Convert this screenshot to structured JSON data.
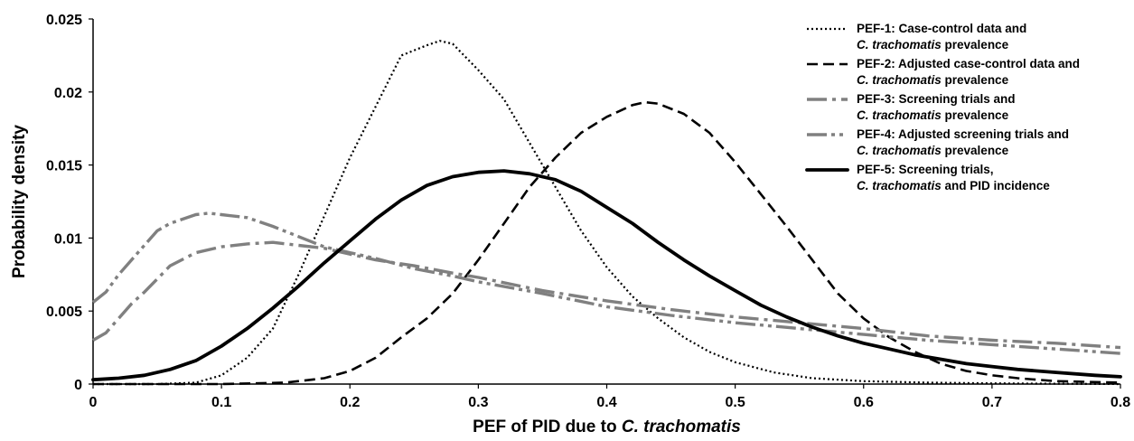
{
  "chart_data": {
    "type": "line",
    "xlabel": "PEF of PID due to C. trachomatis",
    "xlabel_parts": [
      "PEF of PID due to ",
      "C. trachomatis"
    ],
    "ylabel": "Probability density",
    "xlim": [
      0,
      0.8
    ],
    "ylim": [
      0,
      0.025
    ],
    "x_ticks": [
      "0",
      "0.1",
      "0.2",
      "0.3",
      "0.4",
      "0.5",
      "0.6",
      "0.7",
      "0.8"
    ],
    "y_ticks": [
      "0",
      "0.005",
      "0.01",
      "0.015",
      "0.02",
      "0.025"
    ],
    "grid": false,
    "legend_position": "top-right",
    "series": [
      {
        "name": "PEF-1: Case-control data and C. trachomatis prevalence",
        "legend_lines": [
          [
            [
              "PEF-1: Case-control data and",
              false
            ]
          ],
          [
            [
              "C. trachomatis",
              true
            ],
            [
              " prevalence",
              false
            ]
          ]
        ],
        "style": "dotted",
        "color": "#000000",
        "points": [
          [
            0,
            0
          ],
          [
            0.05,
            0
          ],
          [
            0.08,
            0.0001
          ],
          [
            0.1,
            0.0006
          ],
          [
            0.12,
            0.0018
          ],
          [
            0.14,
            0.0038
          ],
          [
            0.16,
            0.0075
          ],
          [
            0.18,
            0.0115
          ],
          [
            0.2,
            0.0155
          ],
          [
            0.22,
            0.019
          ],
          [
            0.24,
            0.0225
          ],
          [
            0.26,
            0.0232
          ],
          [
            0.27,
            0.0235
          ],
          [
            0.28,
            0.0233
          ],
          [
            0.3,
            0.0215
          ],
          [
            0.32,
            0.0195
          ],
          [
            0.34,
            0.0165
          ],
          [
            0.36,
            0.0135
          ],
          [
            0.38,
            0.0105
          ],
          [
            0.4,
            0.008
          ],
          [
            0.42,
            0.006
          ],
          [
            0.44,
            0.0045
          ],
          [
            0.46,
            0.0032
          ],
          [
            0.48,
            0.0022
          ],
          [
            0.5,
            0.0015
          ],
          [
            0.53,
            0.0008
          ],
          [
            0.56,
            0.0004
          ],
          [
            0.6,
            0.0002
          ],
          [
            0.65,
            0.0001
          ],
          [
            0.7,
            5e-05
          ],
          [
            0.8,
            0
          ]
        ]
      },
      {
        "name": "PEF-2: Adjusted case-control data and C. trachomatis prevalence",
        "legend_lines": [
          [
            [
              "PEF-2: Adjusted case-control data and",
              false
            ]
          ],
          [
            [
              "C. trachomatis",
              true
            ],
            [
              " prevalence",
              false
            ]
          ]
        ],
        "style": "dashed",
        "color": "#000000",
        "points": [
          [
            0,
            0
          ],
          [
            0.1,
            0
          ],
          [
            0.15,
            0.0001
          ],
          [
            0.18,
            0.0004
          ],
          [
            0.2,
            0.0009
          ],
          [
            0.22,
            0.0018
          ],
          [
            0.24,
            0.0032
          ],
          [
            0.26,
            0.0045
          ],
          [
            0.28,
            0.0062
          ],
          [
            0.3,
            0.0085
          ],
          [
            0.32,
            0.011
          ],
          [
            0.34,
            0.0135
          ],
          [
            0.36,
            0.0155
          ],
          [
            0.38,
            0.0172
          ],
          [
            0.4,
            0.0183
          ],
          [
            0.42,
            0.0191
          ],
          [
            0.43,
            0.0193
          ],
          [
            0.44,
            0.0192
          ],
          [
            0.46,
            0.0185
          ],
          [
            0.48,
            0.0172
          ],
          [
            0.5,
            0.0152
          ],
          [
            0.52,
            0.013
          ],
          [
            0.54,
            0.0108
          ],
          [
            0.56,
            0.0085
          ],
          [
            0.58,
            0.0062
          ],
          [
            0.6,
            0.0045
          ],
          [
            0.62,
            0.0032
          ],
          [
            0.64,
            0.0022
          ],
          [
            0.66,
            0.0014
          ],
          [
            0.68,
            0.0009
          ],
          [
            0.7,
            0.0006
          ],
          [
            0.72,
            0.0004
          ],
          [
            0.75,
            0.0002
          ],
          [
            0.8,
            0.0001
          ]
        ]
      },
      {
        "name": "PEF-3: Screening trials and C. trachomatis prevalence",
        "legend_lines": [
          [
            [
              "PEF-3: Screening trials and",
              false
            ]
          ],
          [
            [
              "C. trachomatis",
              true
            ],
            [
              " prevalence",
              false
            ]
          ]
        ],
        "style": "long-dash-dot",
        "color": "#808080",
        "points": [
          [
            0,
            0.003
          ],
          [
            0.01,
            0.0035
          ],
          [
            0.02,
            0.0045
          ],
          [
            0.03,
            0.0055
          ],
          [
            0.04,
            0.0063
          ],
          [
            0.05,
            0.0072
          ],
          [
            0.06,
            0.0081
          ],
          [
            0.08,
            0.009
          ],
          [
            0.1,
            0.0094
          ],
          [
            0.12,
            0.0096
          ],
          [
            0.14,
            0.0097
          ],
          [
            0.16,
            0.0095
          ],
          [
            0.18,
            0.0093
          ],
          [
            0.2,
            0.0089
          ],
          [
            0.22,
            0.0085
          ],
          [
            0.25,
            0.0081
          ],
          [
            0.28,
            0.0076
          ],
          [
            0.3,
            0.0073
          ],
          [
            0.35,
            0.0064
          ],
          [
            0.4,
            0.0057
          ],
          [
            0.45,
            0.0051
          ],
          [
            0.5,
            0.0046
          ],
          [
            0.55,
            0.0042
          ],
          [
            0.6,
            0.0038
          ],
          [
            0.65,
            0.0033
          ],
          [
            0.7,
            0.003
          ],
          [
            0.75,
            0.0028
          ],
          [
            0.8,
            0.0025
          ]
        ]
      },
      {
        "name": "PEF-4: Adjusted screening trials and C. trachomatis prevalence",
        "legend_lines": [
          [
            [
              "PEF-4: Adjusted screening trials and",
              false
            ]
          ],
          [
            [
              "C. trachomatis",
              true
            ],
            [
              " prevalence",
              false
            ]
          ]
        ],
        "style": "dash-dot-dot",
        "color": "#808080",
        "points": [
          [
            0,
            0.0056
          ],
          [
            0.01,
            0.0063
          ],
          [
            0.02,
            0.0075
          ],
          [
            0.03,
            0.0085
          ],
          [
            0.04,
            0.0095
          ],
          [
            0.05,
            0.0105
          ],
          [
            0.06,
            0.011
          ],
          [
            0.08,
            0.0116
          ],
          [
            0.09,
            0.0117
          ],
          [
            0.1,
            0.0116
          ],
          [
            0.12,
            0.0114
          ],
          [
            0.14,
            0.0108
          ],
          [
            0.16,
            0.0101
          ],
          [
            0.18,
            0.0094
          ],
          [
            0.2,
            0.009
          ],
          [
            0.22,
            0.0086
          ],
          [
            0.25,
            0.0079
          ],
          [
            0.28,
            0.0074
          ],
          [
            0.3,
            0.007
          ],
          [
            0.35,
            0.0062
          ],
          [
            0.4,
            0.0053
          ],
          [
            0.45,
            0.0047
          ],
          [
            0.5,
            0.0042
          ],
          [
            0.55,
            0.0038
          ],
          [
            0.6,
            0.0034
          ],
          [
            0.65,
            0.003
          ],
          [
            0.7,
            0.0027
          ],
          [
            0.75,
            0.0024
          ],
          [
            0.8,
            0.0021
          ]
        ]
      },
      {
        "name": "PEF-5: Screening trials, C. trachomatis and PID incidence",
        "legend_lines": [
          [
            [
              "PEF-5: Screening trials,",
              false
            ]
          ],
          [
            [
              "C. trachomatis",
              true
            ],
            [
              " and PID incidence",
              false
            ]
          ]
        ],
        "style": "solid-thick",
        "color": "#000000",
        "points": [
          [
            0,
            0.0003
          ],
          [
            0.02,
            0.0004
          ],
          [
            0.04,
            0.0006
          ],
          [
            0.06,
            0.001
          ],
          [
            0.08,
            0.0016
          ],
          [
            0.1,
            0.0026
          ],
          [
            0.12,
            0.0038
          ],
          [
            0.14,
            0.0052
          ],
          [
            0.16,
            0.0067
          ],
          [
            0.18,
            0.0083
          ],
          [
            0.2,
            0.0098
          ],
          [
            0.22,
            0.0113
          ],
          [
            0.24,
            0.0126
          ],
          [
            0.26,
            0.0136
          ],
          [
            0.28,
            0.0142
          ],
          [
            0.3,
            0.0145
          ],
          [
            0.32,
            0.0146
          ],
          [
            0.34,
            0.0144
          ],
          [
            0.36,
            0.014
          ],
          [
            0.38,
            0.0132
          ],
          [
            0.4,
            0.0121
          ],
          [
            0.42,
            0.011
          ],
          [
            0.44,
            0.0097
          ],
          [
            0.46,
            0.0085
          ],
          [
            0.48,
            0.0074
          ],
          [
            0.5,
            0.0064
          ],
          [
            0.52,
            0.0054
          ],
          [
            0.54,
            0.0046
          ],
          [
            0.56,
            0.0039
          ],
          [
            0.58,
            0.0033
          ],
          [
            0.6,
            0.0028
          ],
          [
            0.62,
            0.0024
          ],
          [
            0.64,
            0.002
          ],
          [
            0.66,
            0.0017
          ],
          [
            0.68,
            0.0014
          ],
          [
            0.7,
            0.0012
          ],
          [
            0.72,
            0.001
          ],
          [
            0.75,
            0.0008
          ],
          [
            0.78,
            0.0006
          ],
          [
            0.8,
            0.0005
          ]
        ]
      }
    ]
  }
}
